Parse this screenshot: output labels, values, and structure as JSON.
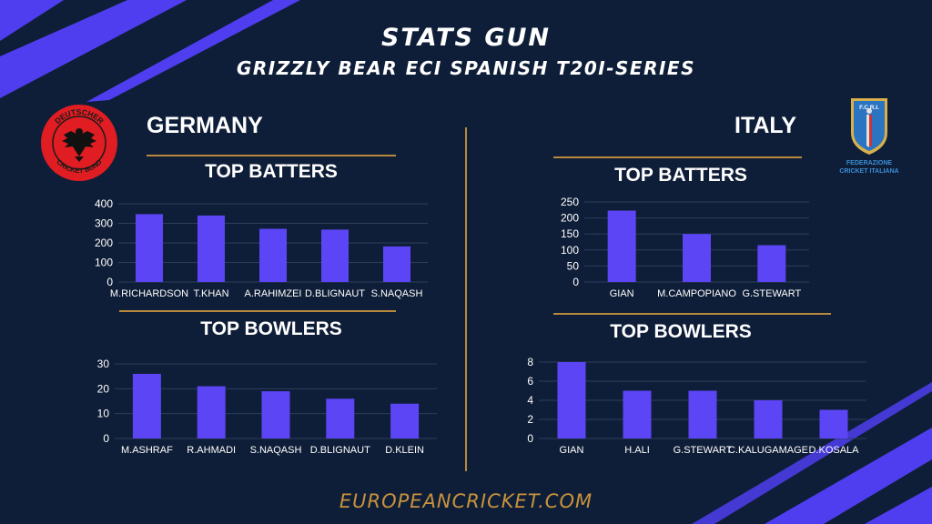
{
  "header": {
    "title": "STATS GUN",
    "subtitle": "GRIZZLY BEAR ECI SPANISH T20I-SERIES"
  },
  "footer": {
    "site": "EUROPEANCRICKET.COM"
  },
  "germany": {
    "name": "GERMANY",
    "logo_text_top": "DEUTSCHER",
    "logo_text_bottom": "CRICKET BUND",
    "batters_heading": "TOP BATTERS",
    "bowlers_heading": "TOP BOWLERS"
  },
  "italy": {
    "name": "ITALY",
    "logo_badge": "F.C.R.I.",
    "logo_text_1": "FEDERAZIONE",
    "logo_text_2": "CRICKET ITALIANA",
    "batters_heading": "TOP BATTERS",
    "bowlers_heading": "TOP BOWLERS"
  },
  "colors": {
    "background": "#0f1e38",
    "bar": "#5b45f5",
    "accent_stripe": "#4f3ef0",
    "divider": "#b8893a",
    "footer_text": "#c8923c"
  },
  "chart_data": [
    {
      "id": "germany-batters",
      "type": "bar",
      "categories": [
        "M.RICHARDSON",
        "T.KHAN",
        "A.RAHIMZEI",
        "D.BLIGNAUT",
        "S.NAQASH"
      ],
      "values": [
        347,
        340,
        272,
        268,
        182
      ],
      "yticks": [
        0,
        100,
        200,
        300,
        400
      ],
      "ylim": [
        0,
        400
      ]
    },
    {
      "id": "germany-bowlers",
      "type": "bar",
      "categories": [
        "M.ASHRAF",
        "R.AHMADI",
        "S.NAQASH",
        "D.BLIGNAUT",
        "D.KLEIN"
      ],
      "values": [
        26,
        21,
        19,
        16,
        14
      ],
      "yticks": [
        0,
        10,
        20,
        30
      ],
      "ylim": [
        0,
        30
      ]
    },
    {
      "id": "italy-batters",
      "type": "bar",
      "categories": [
        "GIAN",
        "M.CAMPOPIANO",
        "G.STEWART"
      ],
      "values": [
        223,
        150,
        115
      ],
      "yticks": [
        0,
        50,
        100,
        150,
        200,
        250
      ],
      "ylim": [
        0,
        250
      ]
    },
    {
      "id": "italy-bowlers",
      "type": "bar",
      "categories": [
        "GIAN",
        "H.ALI",
        "G.STEWART",
        "C.KALUGAMAGE",
        "D.KOSALA"
      ],
      "values": [
        8,
        5,
        5,
        4,
        3
      ],
      "yticks": [
        0,
        2,
        4,
        6,
        8
      ],
      "ylim": [
        0,
        8
      ]
    }
  ]
}
